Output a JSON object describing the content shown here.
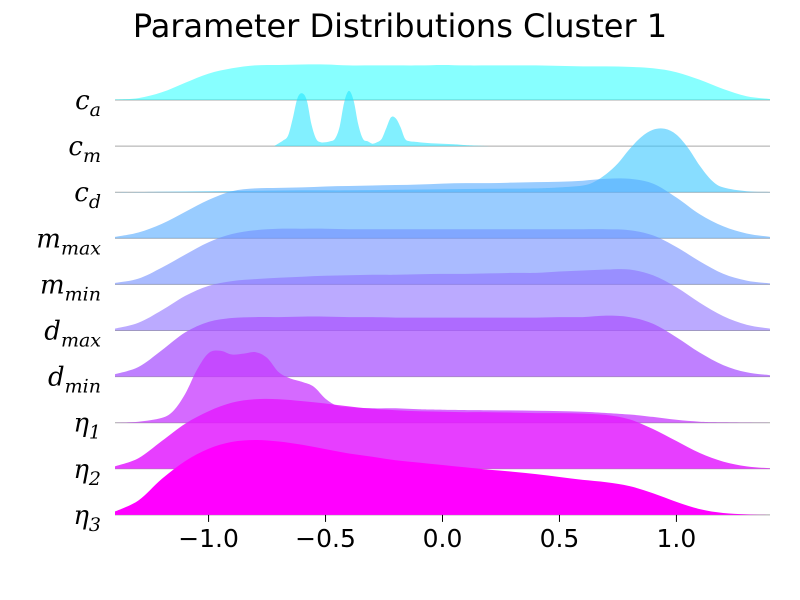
{
  "chart_data": {
    "type": "area",
    "subtype": "ridgeline",
    "title": "Parameter Distributions Cluster 1",
    "xlabel": "",
    "ylabel": "",
    "xlim": [
      -1.4,
      1.4
    ],
    "xticks": [
      -1.0,
      -0.5,
      0.0,
      0.5,
      1.0
    ],
    "xtick_labels": [
      "−1.0",
      "−0.5",
      "0.0",
      "0.5",
      "1.0"
    ],
    "grid": false,
    "legend": "none",
    "colormap": "cool",
    "series": [
      {
        "base": "c",
        "sub": "a",
        "color": "#00ffff",
        "alpha": 0.47,
        "x": [
          -1.4,
          -1.3,
          -1.2,
          -1.1,
          -1.0,
          -0.9,
          -0.8,
          -0.7,
          -0.6,
          -0.5,
          -0.4,
          -0.3,
          -0.2,
          -0.1,
          0.0,
          0.1,
          0.2,
          0.3,
          0.4,
          0.5,
          0.6,
          0.7,
          0.8,
          0.9,
          1.0,
          1.1,
          1.2,
          1.3,
          1.4
        ],
        "y": [
          0.01,
          0.04,
          0.16,
          0.36,
          0.55,
          0.66,
          0.72,
          0.73,
          0.74,
          0.74,
          0.72,
          0.72,
          0.72,
          0.72,
          0.73,
          0.72,
          0.72,
          0.72,
          0.72,
          0.71,
          0.7,
          0.7,
          0.69,
          0.66,
          0.58,
          0.42,
          0.23,
          0.08,
          0.02
        ]
      },
      {
        "base": "c",
        "sub": "m",
        "color": "#1ce3ff",
        "alpha": 0.55,
        "x": [
          -0.72,
          -0.7,
          -0.68,
          -0.66,
          -0.64,
          -0.62,
          -0.6,
          -0.58,
          -0.56,
          -0.54,
          -0.52,
          -0.5,
          -0.48,
          -0.46,
          -0.44,
          -0.42,
          -0.4,
          -0.38,
          -0.36,
          -0.34,
          -0.32,
          -0.3,
          -0.28,
          -0.26,
          -0.24,
          -0.22,
          -0.2,
          -0.18,
          -0.16,
          -0.14,
          -0.12,
          -0.1,
          -0.05,
          0.0,
          0.05,
          0.1,
          0.2
        ],
        "y": [
          0,
          0.06,
          0.12,
          0.22,
          0.58,
          1.0,
          1.1,
          0.95,
          0.45,
          0.15,
          0.08,
          0.08,
          0.1,
          0.15,
          0.4,
          0.92,
          1.15,
          0.95,
          0.45,
          0.15,
          0.1,
          0.05,
          0.08,
          0.15,
          0.38,
          0.6,
          0.58,
          0.4,
          0.15,
          0.1,
          0.09,
          0.08,
          0.06,
          0.05,
          0.04,
          0.02,
          0
        ]
      },
      {
        "base": "c",
        "sub": "d",
        "color": "#38c7ff",
        "alpha": 0.6,
        "x": [
          -1.4,
          -1.2,
          -1.0,
          -0.8,
          -0.6,
          -0.4,
          -0.2,
          0.0,
          0.2,
          0.4,
          0.5,
          0.6,
          0.65,
          0.7,
          0.75,
          0.8,
          0.85,
          0.9,
          0.95,
          1.0,
          1.05,
          1.1,
          1.15,
          1.2,
          1.3,
          1.4
        ],
        "y": [
          0,
          0.01,
          0.02,
          0.03,
          0.04,
          0.04,
          0.05,
          0.06,
          0.07,
          0.08,
          0.1,
          0.14,
          0.22,
          0.38,
          0.6,
          0.9,
          1.15,
          1.3,
          1.32,
          1.2,
          0.92,
          0.55,
          0.25,
          0.1,
          0.02,
          0.005
        ]
      },
      {
        "base": "m",
        "sub": "max",
        "color": "#55aaff",
        "alpha": 0.6,
        "x": [
          -1.4,
          -1.3,
          -1.2,
          -1.1,
          -1.0,
          -0.9,
          -0.8,
          -0.7,
          -0.6,
          -0.5,
          -0.4,
          -0.3,
          -0.2,
          -0.1,
          0.0,
          0.1,
          0.2,
          0.3,
          0.4,
          0.5,
          0.6,
          0.7,
          0.8,
          0.9,
          1.0,
          1.1,
          1.2,
          1.3,
          1.4
        ],
        "y": [
          0.03,
          0.12,
          0.3,
          0.55,
          0.8,
          0.98,
          1.04,
          1.05,
          1.06,
          1.08,
          1.09,
          1.1,
          1.11,
          1.12,
          1.14,
          1.15,
          1.15,
          1.16,
          1.17,
          1.18,
          1.2,
          1.24,
          1.24,
          1.14,
          0.85,
          0.5,
          0.25,
          0.1,
          0.03
        ]
      },
      {
        "base": "m",
        "sub": "min",
        "color": "#718eff",
        "alpha": 0.6,
        "x": [
          -1.4,
          -1.3,
          -1.2,
          -1.1,
          -1.0,
          -0.9,
          -0.8,
          -0.7,
          -0.6,
          -0.5,
          -0.4,
          -0.3,
          -0.2,
          -0.1,
          0.0,
          0.1,
          0.2,
          0.3,
          0.4,
          0.5,
          0.6,
          0.7,
          0.8,
          0.9,
          1.0,
          1.1,
          1.2,
          1.3,
          1.4
        ],
        "y": [
          0.03,
          0.12,
          0.35,
          0.62,
          0.88,
          1.05,
          1.13,
          1.16,
          1.16,
          1.16,
          1.15,
          1.15,
          1.15,
          1.15,
          1.15,
          1.15,
          1.15,
          1.15,
          1.15,
          1.15,
          1.15,
          1.15,
          1.13,
          1.02,
          0.78,
          0.48,
          0.22,
          0.08,
          0.02
        ]
      },
      {
        "base": "d",
        "sub": "max",
        "color": "#8e71ff",
        "alpha": 0.6,
        "x": [
          -1.4,
          -1.3,
          -1.2,
          -1.1,
          -1.0,
          -0.9,
          -0.8,
          -0.7,
          -0.6,
          -0.5,
          -0.4,
          -0.3,
          -0.2,
          -0.1,
          0.0,
          0.1,
          0.2,
          0.3,
          0.4,
          0.5,
          0.6,
          0.7,
          0.8,
          0.9,
          1.0,
          1.1,
          1.2,
          1.3,
          1.4
        ],
        "y": [
          0.04,
          0.16,
          0.42,
          0.72,
          0.93,
          1.03,
          1.07,
          1.1,
          1.12,
          1.14,
          1.15,
          1.16,
          1.16,
          1.17,
          1.18,
          1.18,
          1.19,
          1.2,
          1.2,
          1.23,
          1.25,
          1.27,
          1.27,
          1.15,
          0.9,
          0.58,
          0.3,
          0.12,
          0.04
        ]
      },
      {
        "base": "d",
        "sub": "min",
        "color": "#aa55ff",
        "alpha": 0.75,
        "x": [
          -1.4,
          -1.3,
          -1.2,
          -1.1,
          -1.0,
          -0.9,
          -0.8,
          -0.7,
          -0.6,
          -0.5,
          -0.4,
          -0.3,
          -0.2,
          -0.1,
          0.0,
          0.1,
          0.2,
          0.3,
          0.4,
          0.5,
          0.6,
          0.7,
          0.8,
          0.9,
          1.0,
          1.1,
          1.2,
          1.3,
          1.4
        ],
        "y": [
          0.05,
          0.2,
          0.55,
          0.92,
          1.14,
          1.22,
          1.24,
          1.24,
          1.25,
          1.25,
          1.24,
          1.24,
          1.23,
          1.23,
          1.23,
          1.23,
          1.23,
          1.23,
          1.23,
          1.24,
          1.24,
          1.27,
          1.24,
          1.1,
          0.82,
          0.5,
          0.24,
          0.09,
          0.03
        ]
      },
      {
        "base": "η",
        "sub": "1",
        "color": "#c738ff",
        "alpha": 0.75,
        "x": [
          -1.4,
          -1.3,
          -1.2,
          -1.15,
          -1.1,
          -1.05,
          -1.0,
          -0.95,
          -0.9,
          -0.85,
          -0.8,
          -0.75,
          -0.7,
          -0.65,
          -0.6,
          -0.55,
          -0.5,
          -0.45,
          -0.4,
          -0.3,
          -0.2,
          -0.1,
          0.0,
          0.2,
          0.4,
          0.6,
          0.8,
          0.9,
          1.0,
          1.1,
          1.2,
          1.4
        ],
        "y": [
          0,
          0.02,
          0.1,
          0.25,
          0.6,
          1.1,
          1.45,
          1.5,
          1.42,
          1.44,
          1.47,
          1.35,
          1.05,
          0.92,
          0.85,
          0.75,
          0.5,
          0.35,
          0.32,
          0.3,
          0.3,
          0.28,
          0.27,
          0.26,
          0.25,
          0.23,
          0.17,
          0.12,
          0.06,
          0.02,
          0.01,
          0
        ]
      },
      {
        "base": "η",
        "sub": "2",
        "color": "#e31cff",
        "alpha": 0.85,
        "x": [
          -1.4,
          -1.3,
          -1.2,
          -1.1,
          -1.0,
          -0.9,
          -0.8,
          -0.7,
          -0.6,
          -0.5,
          -0.4,
          -0.3,
          -0.2,
          -0.1,
          0.0,
          0.1,
          0.2,
          0.3,
          0.4,
          0.5,
          0.6,
          0.7,
          0.8,
          0.9,
          1.0,
          1.1,
          1.2,
          1.3,
          1.4
        ],
        "y": [
          0.05,
          0.22,
          0.58,
          0.94,
          1.2,
          1.38,
          1.45,
          1.45,
          1.41,
          1.36,
          1.3,
          1.25,
          1.22,
          1.2,
          1.19,
          1.18,
          1.18,
          1.17,
          1.16,
          1.16,
          1.15,
          1.12,
          1.03,
          0.83,
          0.58,
          0.33,
          0.15,
          0.05,
          0.01
        ]
      },
      {
        "base": "η",
        "sub": "3",
        "color": "#ff00ff",
        "alpha": 1.0,
        "x": [
          -1.4,
          -1.3,
          -1.2,
          -1.1,
          -1.0,
          -0.9,
          -0.8,
          -0.7,
          -0.6,
          -0.5,
          -0.4,
          -0.3,
          -0.2,
          -0.1,
          0.0,
          0.1,
          0.2,
          0.3,
          0.4,
          0.5,
          0.6,
          0.7,
          0.8,
          0.9,
          1.0,
          1.1,
          1.2,
          1.3,
          1.4
        ],
        "y": [
          0.07,
          0.3,
          0.75,
          1.12,
          1.38,
          1.52,
          1.56,
          1.53,
          1.46,
          1.37,
          1.28,
          1.21,
          1.14,
          1.09,
          1.04,
          0.99,
          0.94,
          0.9,
          0.85,
          0.79,
          0.73,
          0.68,
          0.6,
          0.45,
          0.27,
          0.12,
          0.04,
          0.01,
          0.0
        ]
      }
    ]
  }
}
